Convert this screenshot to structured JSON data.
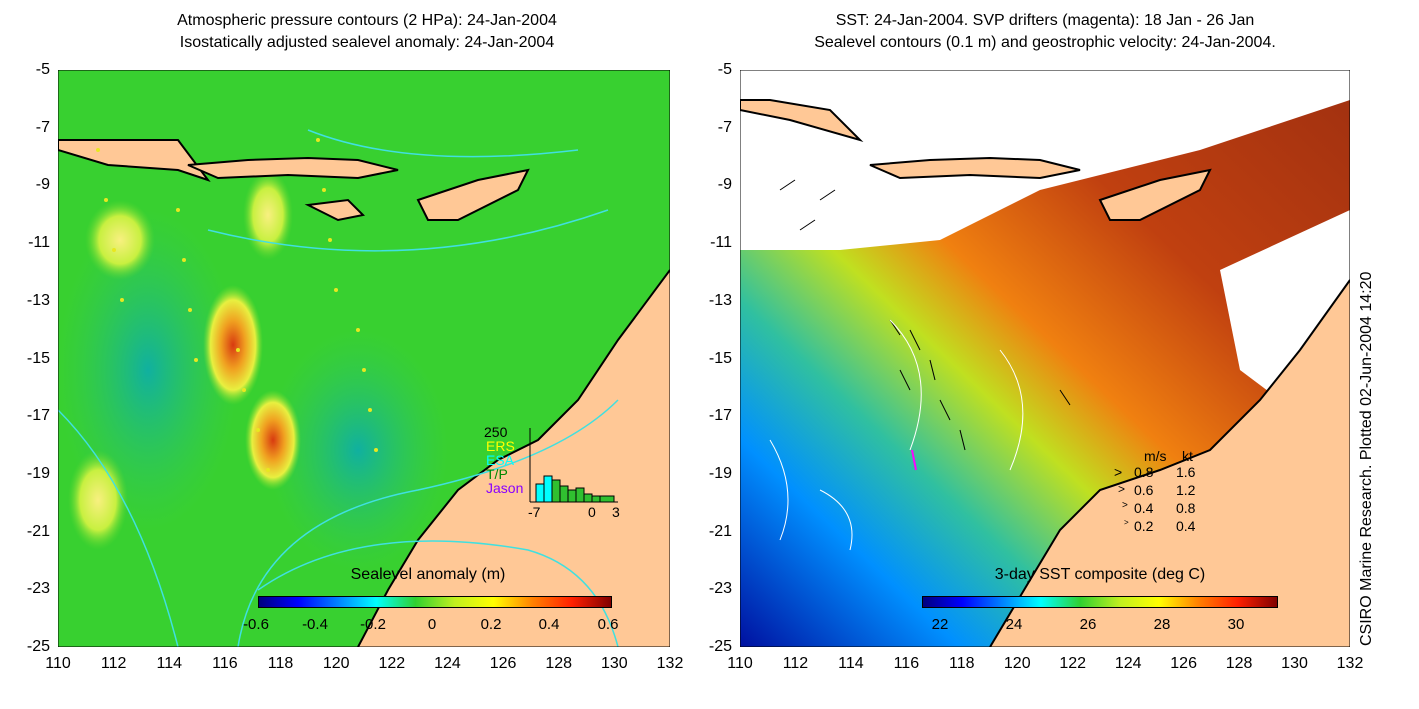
{
  "left": {
    "title_line1": "Atmospheric pressure contours (2 HPa): 24-Jan-2004",
    "title_line2": "Isostatically adjusted sealevel anomaly: 24-Jan-2004",
    "colorbar_title": "Sealevel anomaly (m)",
    "colorbar_ticks": [
      "-0.6",
      "-0.4",
      "-0.2",
      "0",
      "0.2",
      "0.4",
      "0.6"
    ],
    "histogram": {
      "max_label": "250",
      "satellites": [
        "ERS",
        "ESA",
        "T/P",
        "Jason"
      ],
      "satellite_colors": [
        "#ffff00",
        "#00ffff",
        "#00cc00",
        "#ff00ff"
      ],
      "x_ticks": [
        "-7",
        "0",
        "3"
      ]
    }
  },
  "right": {
    "title_line1": "SST: 24-Jan-2004. SVP drifters (magenta): 18 Jan - 26 Jan",
    "title_line2": "Sealevel contours (0.1 m) and geostrophic velocity: 24-Jan-2004.",
    "colorbar_title": "3-day SST composite (deg C)",
    "colorbar_ticks": [
      "22",
      "24",
      "26",
      "28",
      "30"
    ],
    "velocity_legend": {
      "header_ms": "m/s",
      "header_kt": "kt",
      "rows": [
        {
          "ms": "0.8",
          "kt": "1.6"
        },
        {
          "ms": "0.6",
          "kt": "1.2"
        },
        {
          "ms": "0.4",
          "kt": "0.8"
        },
        {
          "ms": "0.2",
          "kt": "0.4"
        }
      ]
    }
  },
  "axes": {
    "lat_labels": [
      "-5",
      "-7",
      "-9",
      "-11",
      "-13",
      "-15",
      "-17",
      "-19",
      "-21",
      "-23",
      "-25"
    ],
    "lon_labels": [
      "110",
      "112",
      "114",
      "116",
      "118",
      "120",
      "122",
      "124",
      "126",
      "128",
      "130",
      "132"
    ]
  },
  "vertical_note": "CSIRO Marine Research. Plotted 02-Jun-2004 14:20",
  "colors": {
    "land": "#ffc896",
    "sea_green": "#30d030",
    "coast": "#000000",
    "contour_cyan": "#40e0e0"
  }
}
